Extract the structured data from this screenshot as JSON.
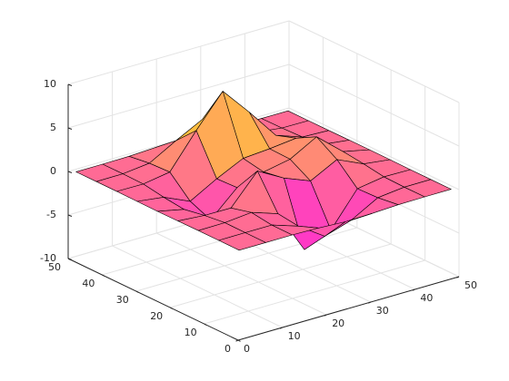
{
  "chart_data": {
    "type": "surface",
    "x": [
      1,
      7,
      13,
      19,
      25,
      31,
      37,
      43,
      49
    ],
    "y": [
      1,
      7,
      13,
      19,
      25,
      31,
      37,
      43,
      49
    ],
    "z": [
      [
        0.0,
        0.0,
        0.0,
        -0.07,
        -0.24,
        -0.17,
        -0.03,
        0.0,
        0.0
      ],
      [
        0.0,
        0.01,
        0.01,
        -0.99,
        -3.02,
        -2.05,
        -0.35,
        -0.01,
        0.0
      ],
      [
        0.0,
        0.03,
        0.33,
        -0.68,
        -5.68,
        -4.32,
        -0.44,
        0.05,
        0.0
      ],
      [
        -0.02,
        -0.26,
        -0.28,
        3.09,
        1.4,
        0.2,
        1.78,
        0.41,
        0.02
      ],
      [
        -0.04,
        -0.69,
        -2.77,
        0.06,
        0.98,
        1.57,
        3.27,
        0.7,
        0.03
      ],
      [
        -0.02,
        -0.42,
        -1.76,
        -0.05,
        1.42,
        1.65,
        1.99,
        0.4,
        0.02
      ],
      [
        0.0,
        -0.03,
        0.47,
        4.37,
        8.0,
        4.72,
        1.19,
        0.12,
        0.0
      ],
      [
        0.0,
        0.02,
        0.36,
        2.07,
        3.65,
        2.09,
        0.41,
        0.03,
        0.0
      ],
      [
        0.0,
        0.0,
        0.03,
        0.17,
        0.3,
        0.17,
        0.03,
        0.0,
        0.0
      ]
    ],
    "xlim": [
      0,
      50
    ],
    "ylim": [
      0,
      50
    ],
    "zlim": [
      -10,
      10
    ],
    "xticks": [
      0,
      10,
      20,
      30,
      40,
      50
    ],
    "yticks": [
      0,
      10,
      20,
      30,
      40,
      50
    ],
    "zticks": [
      -10,
      -5,
      0,
      5,
      10
    ],
    "grid": true,
    "colormap": [
      "#ff00ff",
      "#ffff00"
    ],
    "edge_color": "#000000"
  }
}
